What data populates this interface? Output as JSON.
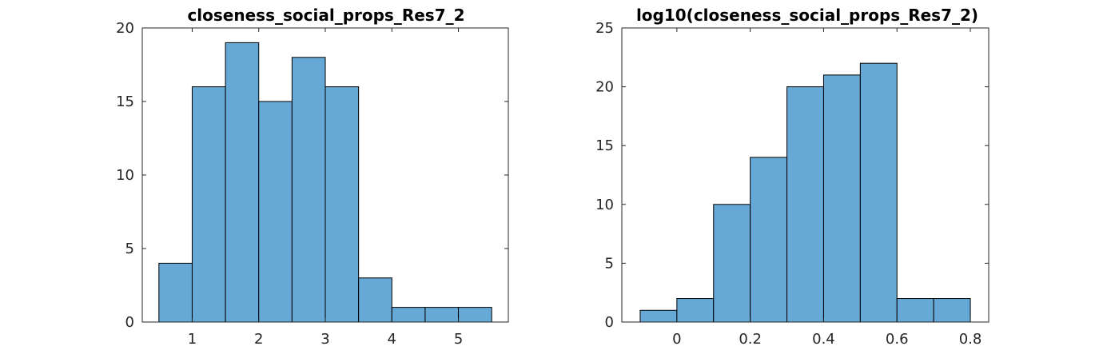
{
  "chart_data": [
    {
      "type": "bar",
      "subtype": "histogram",
      "title": "closeness_social_props_Res7_2",
      "bin_edges": [
        0.5,
        1.0,
        1.5,
        2.0,
        2.5,
        3.0,
        3.5,
        4.0,
        4.5,
        5.0,
        5.5
      ],
      "values": [
        4,
        16,
        19,
        15,
        18,
        16,
        3,
        1,
        1,
        1
      ],
      "xlim": [
        0.25,
        5.75
      ],
      "ylim": [
        0,
        20
      ],
      "xticks": [
        1,
        2,
        3,
        4,
        5
      ],
      "xtick_labels": [
        "1",
        "2",
        "3",
        "4",
        "5"
      ],
      "yticks": [
        0,
        5,
        10,
        15,
        20
      ],
      "ytick_labels": [
        "0",
        "5",
        "10",
        "15",
        "20"
      ],
      "bar_color": "#66a9d6",
      "edge_color": "#000000",
      "grid": false,
      "box": true
    },
    {
      "type": "bar",
      "subtype": "histogram",
      "title": "log10(closeness_social_props_Res7_2)",
      "bin_edges": [
        -0.1,
        0.0,
        0.1,
        0.2,
        0.3,
        0.4,
        0.5,
        0.6,
        0.7,
        0.8
      ],
      "values": [
        1,
        2,
        10,
        14,
        20,
        21,
        22,
        2,
        2
      ],
      "xlim": [
        -0.15,
        0.85
      ],
      "ylim": [
        0,
        25
      ],
      "xticks": [
        0,
        0.2,
        0.4,
        0.6,
        0.8
      ],
      "xtick_labels": [
        "0",
        "0.2",
        "0.4",
        "0.6",
        "0.8"
      ],
      "yticks": [
        0,
        5,
        10,
        15,
        20,
        25
      ],
      "ytick_labels": [
        "0",
        "5",
        "10",
        "15",
        "20",
        "25"
      ],
      "bar_color": "#66a9d6",
      "edge_color": "#000000",
      "grid": false,
      "box": true
    }
  ]
}
